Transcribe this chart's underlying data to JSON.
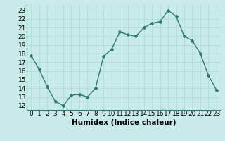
{
  "x": [
    0,
    1,
    2,
    3,
    4,
    5,
    6,
    7,
    8,
    9,
    10,
    11,
    12,
    13,
    14,
    15,
    16,
    17,
    18,
    19,
    20,
    21,
    22,
    23
  ],
  "y": [
    17.8,
    16.2,
    14.2,
    12.5,
    12.0,
    13.2,
    13.3,
    13.0,
    14.0,
    17.7,
    18.5,
    20.5,
    20.2,
    20.0,
    21.0,
    21.5,
    21.7,
    23.0,
    22.3,
    20.0,
    19.5,
    18.0,
    15.5,
    13.8
  ],
  "line_color": "#2e7d6e",
  "marker": "D",
  "marker_size": 2.0,
  "bg_color": "#c8eae8",
  "grid_color": "#b0d8d5",
  "xlabel": "Humidex (Indice chaleur)",
  "ylabel_ticks": [
    12,
    13,
    14,
    15,
    16,
    17,
    18,
    19,
    20,
    21,
    22,
    23
  ],
  "xtick_labels": [
    "0",
    "1",
    "2",
    "3",
    "4",
    "5",
    "6",
    "7",
    "8",
    "9",
    "10",
    "11",
    "12",
    "13",
    "14",
    "15",
    "16",
    "17",
    "18",
    "19",
    "20",
    "21",
    "22",
    "23"
  ],
  "ylim": [
    11.5,
    23.7
  ],
  "xlim": [
    -0.5,
    23.5
  ],
  "xlabel_fontsize": 7.5,
  "tick_fontsize": 6.5,
  "line_width": 1.0
}
